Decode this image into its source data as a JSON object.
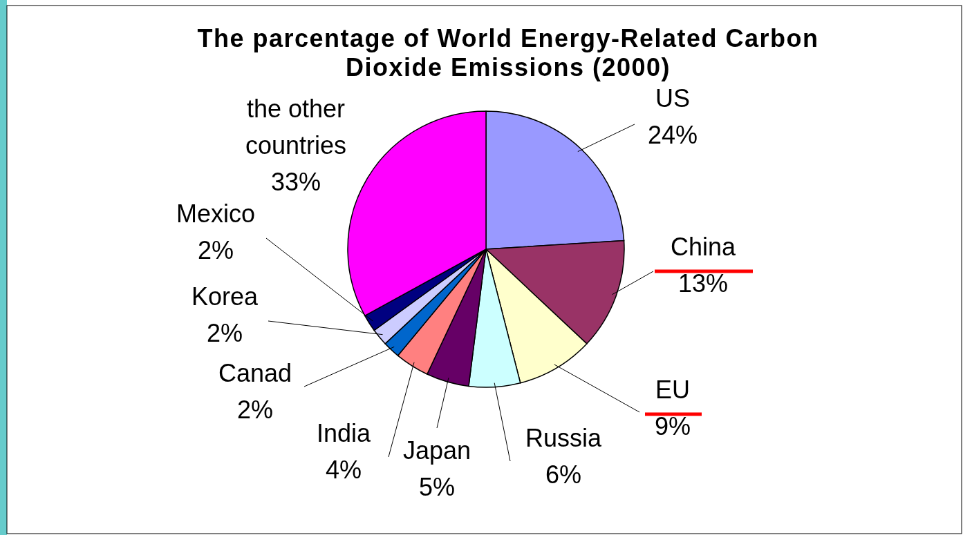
{
  "chart_data": {
    "type": "pie",
    "title": "The parcentage of World Energy-Related Carbon Dioxide Emissions (2000)",
    "categories": [
      "US",
      "China",
      "EU",
      "Russia",
      "Japan",
      "India",
      "Canad",
      "Korea",
      "Mexico",
      "the other countries"
    ],
    "values": [
      24,
      13,
      9,
      6,
      5,
      4,
      2,
      2,
      2,
      33
    ],
    "colors": [
      "#9999ff",
      "#993366",
      "#ffffcc",
      "#ccffff",
      "#660066",
      "#ff8080",
      "#0066cc",
      "#ccccff",
      "#000080",
      "#ff00ff"
    ],
    "value_labels": [
      "24%",
      "13%",
      "9%",
      "6%",
      "5%",
      "4%",
      "2%",
      "2%",
      "2%",
      "33%"
    ]
  }
}
